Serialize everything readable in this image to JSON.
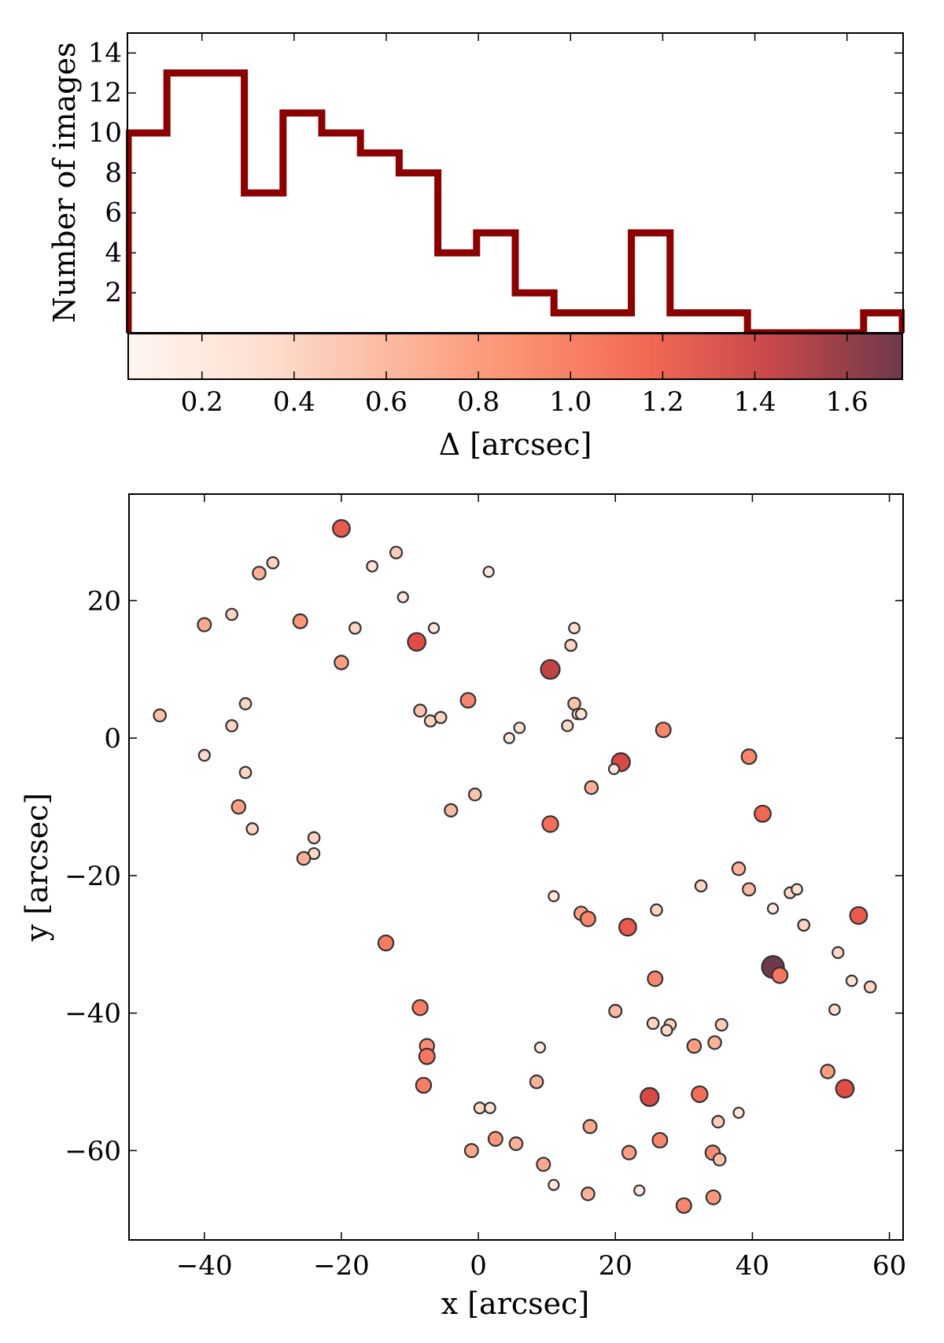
{
  "colors": {
    "histogram_line": "#8b0000",
    "colormap": [
      "#fff5f0",
      "#fdd0bd",
      "#fc9f81",
      "#f5705a",
      "#e04b45",
      "#a33a46",
      "#6e3a4a"
    ],
    "point_edge": "#333333",
    "axes": "#000000"
  },
  "chart_data": [
    {
      "type": "histogram",
      "ylabel": "Number of images",
      "xlim": [
        0.04,
        1.72
      ],
      "ylim": [
        0,
        15
      ],
      "yticks": [
        2,
        4,
        6,
        8,
        10,
        12,
        14
      ],
      "bin_edges": [
        0.04,
        0.124,
        0.208,
        0.292,
        0.376,
        0.46,
        0.544,
        0.628,
        0.712,
        0.796,
        0.88,
        0.964,
        1.048,
        1.132,
        1.216,
        1.3,
        1.384,
        1.468,
        1.552,
        1.636,
        1.72
      ],
      "counts": [
        10,
        13,
        13,
        7,
        11,
        10,
        9,
        8,
        4,
        5,
        2,
        1,
        1,
        5,
        1,
        1,
        0,
        0,
        0,
        1
      ]
    },
    {
      "type": "colorbar",
      "xlabel": "Δ [arcsec]",
      "range": [
        0.04,
        1.72
      ],
      "ticks": [
        "0.2",
        "0.4",
        "0.6",
        "0.8",
        "1.0",
        "1.2",
        "1.4",
        "1.6"
      ],
      "colormap": "Reds"
    },
    {
      "type": "scatter",
      "xlabel": "x [arcsec]",
      "ylabel": "y [arcsec]",
      "xlim": [
        -51,
        62
      ],
      "ylim": [
        -73,
        35.5
      ],
      "xticks": [
        "−40",
        "−20",
        "0",
        "20",
        "40",
        "60"
      ],
      "yticks": [
        "20",
        "0",
        "−20",
        "−40",
        "−60"
      ],
      "points": [
        [
          -20,
          30.5,
          1.05
        ],
        [
          -12,
          27,
          0.35
        ],
        [
          -15.5,
          25,
          0.2
        ],
        [
          -30,
          25.5,
          0.3
        ],
        [
          -32,
          24,
          0.5
        ],
        [
          1.5,
          24.2,
          0.15
        ],
        [
          -11,
          20.5,
          0.15
        ],
        [
          -40,
          16.5,
          0.55
        ],
        [
          -36,
          18,
          0.3
        ],
        [
          -26,
          17,
          0.65
        ],
        [
          -18,
          16,
          0.3
        ],
        [
          -6.5,
          16,
          0.15
        ],
        [
          14,
          16,
          0.2
        ],
        [
          13.5,
          13.5,
          0.3
        ],
        [
          -9,
          14,
          1.15
        ],
        [
          -20,
          11,
          0.6
        ],
        [
          10.5,
          10,
          1.3
        ],
        [
          14,
          5,
          0.4
        ],
        [
          14.5,
          3.5,
          0.2
        ],
        [
          15,
          3.5,
          0.2
        ],
        [
          -46.5,
          3.3,
          0.4
        ],
        [
          -34,
          5,
          0.3
        ],
        [
          -8.5,
          4,
          0.4
        ],
        [
          -7,
          2.5,
          0.3
        ],
        [
          -5.5,
          3,
          0.3
        ],
        [
          -1.5,
          5.5,
          0.75
        ],
        [
          13,
          1.8,
          0.25
        ],
        [
          6,
          1.5,
          0.2
        ],
        [
          4.5,
          0,
          0.15
        ],
        [
          -36,
          1.8,
          0.3
        ],
        [
          27,
          1.2,
          0.75
        ],
        [
          39.5,
          -2.7,
          0.75
        ],
        [
          -40,
          -2.5,
          0.25
        ],
        [
          -34,
          -5,
          0.3
        ],
        [
          20.8,
          -3.5,
          1.2
        ],
        [
          19.8,
          -4.5,
          0.15
        ],
        [
          16.5,
          -7.2,
          0.5
        ],
        [
          41.5,
          -11,
          0.95
        ],
        [
          -35,
          -10,
          0.6
        ],
        [
          -33,
          -13.2,
          0.3
        ],
        [
          -4,
          -10.5,
          0.45
        ],
        [
          -0.5,
          -8.2,
          0.4
        ],
        [
          10.5,
          -12.5,
          0.9
        ],
        [
          -24,
          -14.5,
          0.3
        ],
        [
          -24,
          -16.8,
          0.25
        ],
        [
          -25.5,
          -17.5,
          0.5
        ],
        [
          38,
          -19,
          0.5
        ],
        [
          32.5,
          -21.5,
          0.3
        ],
        [
          39.5,
          -22,
          0.45
        ],
        [
          45.5,
          -22.5,
          0.25
        ],
        [
          46.5,
          -22,
          0.2
        ],
        [
          11,
          -23,
          0.15
        ],
        [
          26,
          -25,
          0.3
        ],
        [
          43,
          -24.8,
          0.15
        ],
        [
          15,
          -25.5,
          0.6
        ],
        [
          16,
          -26.3,
          0.75
        ],
        [
          21.8,
          -27.5,
          1.05
        ],
        [
          47.5,
          -27.2,
          0.3
        ],
        [
          55.5,
          -25.8,
          1.05
        ],
        [
          -13.5,
          -29.8,
          0.8
        ],
        [
          52.5,
          -31.2,
          0.25
        ],
        [
          43,
          -33.3,
          1.72
        ],
        [
          44,
          -34.5,
          0.85
        ],
        [
          25.8,
          -35,
          0.75
        ],
        [
          54.5,
          -35.3,
          0.2
        ],
        [
          57.2,
          -36.2,
          0.3
        ],
        [
          -8.5,
          -39.2,
          0.8
        ],
        [
          20,
          -39.7,
          0.45
        ],
        [
          52,
          -39.5,
          0.2
        ],
        [
          25.5,
          -41.5,
          0.3
        ],
        [
          28,
          -41.7,
          0.3
        ],
        [
          27.5,
          -42.5,
          0.25
        ],
        [
          35.5,
          -41.7,
          0.35
        ],
        [
          31.5,
          -44.8,
          0.6
        ],
        [
          34.5,
          -44.3,
          0.5
        ],
        [
          -7.5,
          -44.8,
          0.7
        ],
        [
          -7.5,
          -46.3,
          0.85
        ],
        [
          9,
          -45,
          0.15
        ],
        [
          51,
          -48.5,
          0.6
        ],
        [
          8.5,
          -50,
          0.5
        ],
        [
          -8,
          -50.5,
          0.8
        ],
        [
          25,
          -52.2,
          1.2
        ],
        [
          32.3,
          -51.8,
          0.9
        ],
        [
          53.5,
          -51,
          1.15
        ],
        [
          0.2,
          -53.8,
          0.25
        ],
        [
          1.7,
          -53.8,
          0.2
        ],
        [
          38,
          -54.5,
          0.15
        ],
        [
          35,
          -55.8,
          0.35
        ],
        [
          16.3,
          -56.5,
          0.55
        ],
        [
          2.5,
          -58.3,
          0.65
        ],
        [
          5.5,
          -59,
          0.5
        ],
        [
          26.5,
          -58.5,
          0.75
        ],
        [
          -1,
          -60,
          0.55
        ],
        [
          22,
          -60.3,
          0.6
        ],
        [
          34.2,
          -60.3,
          0.7
        ],
        [
          35.2,
          -61.3,
          0.4
        ],
        [
          9.5,
          -62,
          0.55
        ],
        [
          11,
          -65,
          0.15
        ],
        [
          16,
          -66.3,
          0.5
        ],
        [
          23.5,
          -65.8,
          0.15
        ],
        [
          34.3,
          -66.8,
          0.65
        ],
        [
          30,
          -68,
          0.75
        ]
      ]
    }
  ]
}
